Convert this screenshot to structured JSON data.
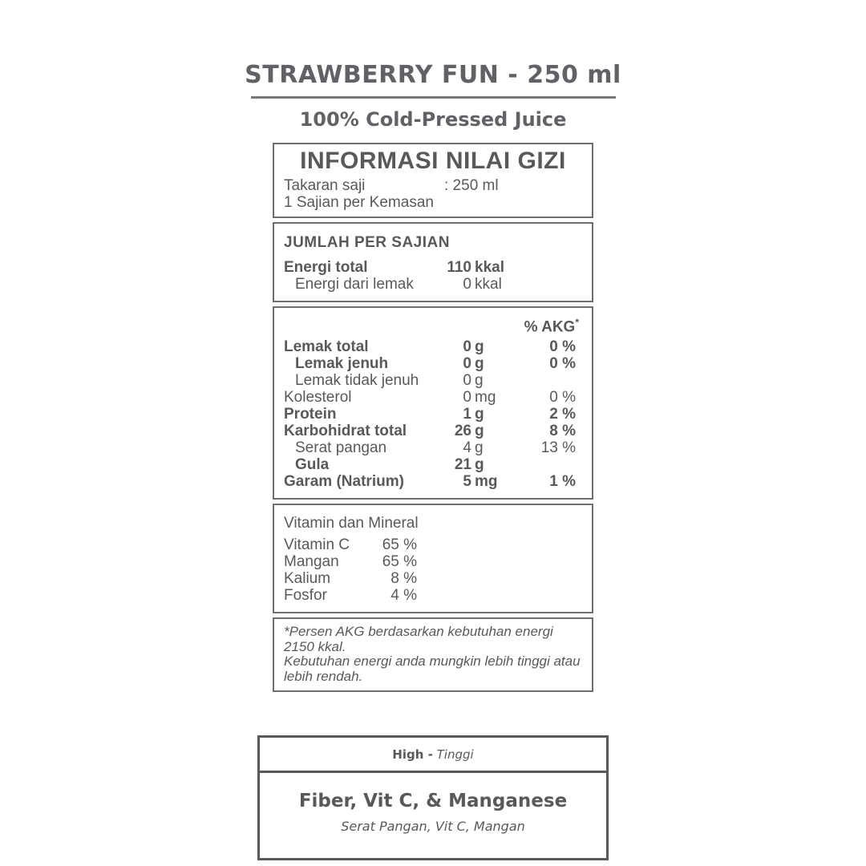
{
  "page": {
    "title": "STRAWBERRY FUN - 250 ml",
    "subtitle": "100% Cold-Pressed Juice"
  },
  "label": {
    "header": {
      "title": "INFORMASI NILAI GIZI",
      "serving_size_label": "Takaran saji",
      "serving_size_value": ": 250 ml",
      "servings_per_pack": "1 Sajian per Kemasan"
    },
    "per_serving": {
      "heading": "JUMLAH PER SAJIAN",
      "rows": [
        {
          "label": "Energi total",
          "value": "110",
          "unit": "kkal"
        },
        {
          "label": "Energi dari lemak",
          "value": "0",
          "unit": "kkal"
        }
      ]
    },
    "akg": {
      "pct_header": "% AKG",
      "pct_header_sup": "*",
      "rows": [
        {
          "label": "Lemak total",
          "value": "0",
          "unit": "g",
          "pct": "0 %"
        },
        {
          "label": "Lemak jenuh",
          "value": "0",
          "unit": "g",
          "pct": "0 %"
        },
        {
          "label": "Lemak tidak jenuh",
          "value": "0",
          "unit": "g",
          "pct": ""
        },
        {
          "label": "Kolesterol",
          "value": "0",
          "unit": "mg",
          "pct": "0 %"
        },
        {
          "label": "Protein",
          "value": "1",
          "unit": "g",
          "pct": "2 %"
        },
        {
          "label": "Karbohidrat total",
          "value": "26",
          "unit": "g",
          "pct": "8 %"
        },
        {
          "label": "Serat pangan",
          "value": "4",
          "unit": "g",
          "pct": "13 %"
        },
        {
          "label": "Gula",
          "value": "21",
          "unit": "g",
          "pct": ""
        },
        {
          "label": "Garam (Natrium)",
          "value": "5",
          "unit": "mg",
          "pct": "1 %"
        }
      ]
    },
    "vitamins": {
      "heading": "Vitamin dan Mineral",
      "rows": [
        {
          "label": "Vitamin C",
          "pct": "65 %"
        },
        {
          "label": "Mangan",
          "pct": "65 %"
        },
        {
          "label": "Kalium",
          "pct": "8 %"
        },
        {
          "label": "Fosfor",
          "pct": "4 %"
        }
      ]
    },
    "footnote": "*Persen AKG berdasarkan kebutuhan energi 2150 kkal.\n Kebutuhan energi anda mungkin lebih tinggi atau\nlebih rendah."
  },
  "highlight_box": {
    "header_bold": "High -",
    "header_italic": "Tinggi",
    "title": "Fiber, Vit C, & Manganese",
    "subtitle": "Serat Pangan, Vit C, Mangan"
  },
  "colors": {
    "text": "#58595b",
    "border": "#6d6e70"
  }
}
